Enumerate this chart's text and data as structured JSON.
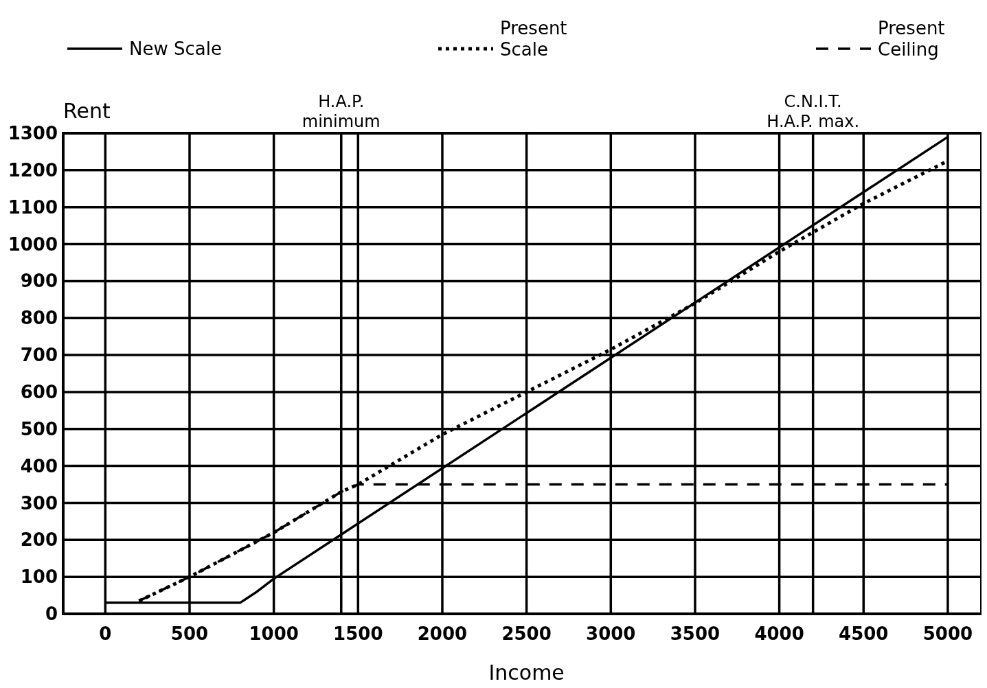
{
  "chart_data": {
    "type": "line",
    "xlabel": "Income",
    "ylabel": "Rent",
    "xlim": [
      -250,
      5200
    ],
    "ylim": [
      0,
      1300
    ],
    "xticks": [
      0,
      500,
      1000,
      1500,
      2000,
      2500,
      3000,
      3500,
      4000,
      4500,
      5000
    ],
    "yticks": [
      0,
      100,
      200,
      300,
      400,
      500,
      600,
      700,
      800,
      900,
      1000,
      1100,
      1200,
      1300
    ],
    "grid": true,
    "legend": "top",
    "ref_lines": [
      {
        "axis": "x",
        "value": 1400,
        "label": "H.A.P.\nminimum",
        "color": "#000000"
      },
      {
        "axis": "x",
        "value": 4200,
        "label": "C.N.I.T.\nH.A.P. max.",
        "color": "#000000"
      }
    ],
    "series": [
      {
        "name": "New Scale",
        "color": "#000000",
        "line_style": "solid",
        "x": [
          0,
          800,
          900,
          1000,
          5000
        ],
        "values": [
          30,
          30,
          60,
          95,
          1290
        ]
      },
      {
        "name": "Present\nScale",
        "color": "#000000",
        "line_style": "dotted",
        "x": [
          200,
          500,
          1000,
          1400,
          1500,
          2000,
          2500,
          3000,
          3500,
          4000,
          4500,
          5000
        ],
        "values": [
          35,
          100,
          220,
          330,
          350,
          485,
          600,
          715,
          840,
          980,
          1110,
          1225
        ]
      },
      {
        "name": "Present\nCeiling",
        "color": "#000000",
        "line_style": "dashed",
        "x": [
          200,
          500,
          1000,
          1400,
          1500,
          5000
        ],
        "values": [
          35,
          100,
          220,
          330,
          350,
          350
        ]
      }
    ]
  }
}
